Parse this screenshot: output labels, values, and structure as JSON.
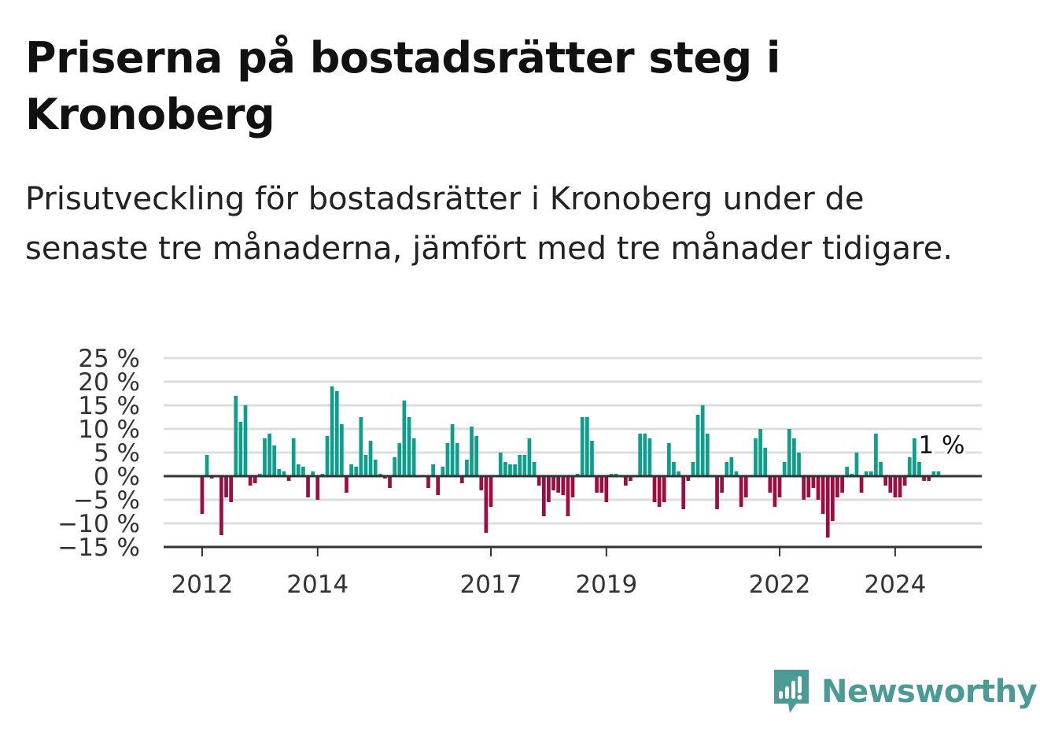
{
  "title": "Priserna på bostadsrätter steg i Kronoberg",
  "subtitle": "Prisutveckling för bostadsrätter i Kronoberg under de senaste tre månaderna, jämfört med tre månader tidigare.",
  "brand": {
    "name": "Newsworthy",
    "color": "#4a9b96",
    "icon": "newsworthy-logo-icon"
  },
  "colors": {
    "positive": "#0d9e8c",
    "negative": "#9e0d42",
    "grid": "#dddddd",
    "axis": "#333333"
  },
  "chart_data": {
    "type": "bar",
    "x_ticks": [
      "2012",
      "2014",
      "2017",
      "2019",
      "2022",
      "2024"
    ],
    "y_ticks": [
      "25 %",
      "20 %",
      "15 %",
      "10 %",
      "5 %",
      "0 %",
      "−5 %",
      "−10 %",
      "−15 %"
    ],
    "ylim": [
      -15,
      25
    ],
    "xlim": [
      "2011-05",
      "2025-07"
    ],
    "grid": true,
    "legend": "none",
    "annotation": {
      "text": "1 %",
      "month": "2024-10"
    },
    "series": [
      {
        "x": [
          "2012-01",
          "2012-02",
          "2012-03",
          "2012-04",
          "2012-05",
          "2012-06",
          "2012-07",
          "2012-08",
          "2012-09",
          "2012-10",
          "2012-11",
          "2012-12",
          "2013-01",
          "2013-02",
          "2013-03",
          "2013-04",
          "2013-05",
          "2013-06",
          "2013-07",
          "2013-08",
          "2013-09",
          "2013-10",
          "2013-11",
          "2013-12",
          "2014-01",
          "2014-02",
          "2014-03",
          "2014-04",
          "2014-05",
          "2014-06",
          "2014-07",
          "2014-08",
          "2014-09",
          "2014-10",
          "2014-11",
          "2014-12",
          "2015-01",
          "2015-02",
          "2015-03",
          "2015-04",
          "2015-05",
          "2015-06",
          "2015-07",
          "2015-08",
          "2015-09",
          "2015-10",
          "2015-11",
          "2015-12",
          "2016-01",
          "2016-02",
          "2016-03",
          "2016-04",
          "2016-05",
          "2016-06",
          "2016-07",
          "2016-08",
          "2016-09",
          "2016-10",
          "2016-11",
          "2016-12",
          "2017-01",
          "2017-02",
          "2017-03",
          "2017-04",
          "2017-05",
          "2017-06",
          "2017-07",
          "2017-08",
          "2017-09",
          "2017-10",
          "2017-11",
          "2017-12",
          "2018-01",
          "2018-02",
          "2018-03",
          "2018-04",
          "2018-05",
          "2018-06",
          "2018-07",
          "2018-08",
          "2018-09",
          "2018-10",
          "2018-11",
          "2018-12",
          "2019-01",
          "2019-02",
          "2019-03",
          "2019-04",
          "2019-05",
          "2019-06",
          "2019-07",
          "2019-08",
          "2019-09",
          "2019-10",
          "2019-11",
          "2019-12",
          "2020-01",
          "2020-02",
          "2020-03",
          "2020-04",
          "2020-05",
          "2020-06",
          "2020-07",
          "2020-08",
          "2020-09",
          "2020-10",
          "2020-11",
          "2020-12",
          "2021-01",
          "2021-02",
          "2021-03",
          "2021-04",
          "2021-05",
          "2021-06",
          "2021-07",
          "2021-08",
          "2021-09",
          "2021-10",
          "2021-11",
          "2021-12",
          "2022-01",
          "2022-02",
          "2022-03",
          "2022-04",
          "2022-05",
          "2022-06",
          "2022-07",
          "2022-08",
          "2022-09",
          "2022-10",
          "2022-11",
          "2022-12",
          "2023-01",
          "2023-02",
          "2023-03",
          "2023-04",
          "2023-05",
          "2023-06",
          "2023-07",
          "2023-08",
          "2023-09",
          "2023-10",
          "2023-11",
          "2023-12",
          "2024-01",
          "2024-02",
          "2024-03",
          "2024-04",
          "2024-05",
          "2024-06",
          "2024-07",
          "2024-08",
          "2024-09",
          "2024-10"
        ],
        "values": [
          -8,
          4.5,
          -0.5,
          null,
          -12.5,
          -4.5,
          -5.5,
          17,
          11.5,
          15,
          -2,
          -1.5,
          0.5,
          8,
          9,
          6.5,
          1.5,
          1,
          -1,
          8,
          2.5,
          2,
          -4.5,
          1,
          -5,
          0.5,
          8.5,
          19,
          18,
          11,
          -3.5,
          2.5,
          2,
          12.5,
          4.5,
          7.5,
          3.5,
          0.5,
          -0.5,
          -2.5,
          4,
          7,
          16,
          12.5,
          8,
          null,
          null,
          -2.5,
          2.5,
          -4,
          2,
          7,
          11,
          7,
          -1.5,
          3.5,
          10.5,
          8.5,
          -3,
          -12,
          -6.5,
          null,
          5,
          3,
          2.5,
          2.5,
          4.5,
          4.5,
          8,
          3,
          -2,
          -8.5,
          -5.5,
          -3,
          -3.5,
          -4,
          -8.5,
          -4.5,
          0.5,
          12.5,
          12.5,
          7.5,
          -3.5,
          -3.5,
          -5.5,
          0.5,
          0.5,
          null,
          -2,
          -1,
          0,
          9,
          9,
          8,
          -5.5,
          -6.5,
          -5.5,
          7,
          3,
          1,
          -7,
          -1,
          3,
          13,
          15,
          9,
          null,
          -7,
          -3.5,
          3,
          4,
          1,
          -6.5,
          -4.5,
          null,
          8,
          10,
          6,
          -3.5,
          -6.5,
          -4.5,
          3,
          10,
          8,
          5,
          -5,
          -4.5,
          -2.5,
          -5,
          -8,
          -13,
          -9.5,
          -4.5,
          -3.5,
          2,
          0.5,
          5,
          -3.5,
          1,
          1,
          9,
          3,
          -2,
          -3.5,
          -4.5,
          -4.5,
          -2,
          4,
          8,
          3,
          -1,
          -1,
          1,
          1
        ]
      }
    ]
  }
}
